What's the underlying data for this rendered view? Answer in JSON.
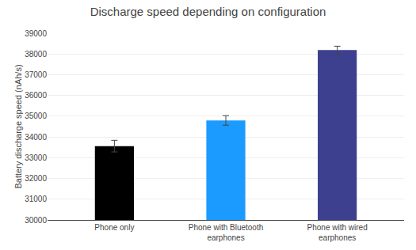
{
  "chart_data": {
    "type": "bar",
    "title": "Discharge speed depending on configuration",
    "ylabel": "Battery discharge speed (nAh/s)",
    "categories": [
      "Phone only",
      "Phone with Bluetooth\nearphones",
      "Phone with wired\nearphones"
    ],
    "values": [
      33559,
      34797,
      38185
    ],
    "errors": [
      280,
      230,
      190
    ],
    "colors": [
      "#000000",
      "#1B9BFF",
      "#3D3F8F"
    ],
    "ylim": [
      30000,
      39000
    ],
    "yticks": [
      30000,
      31000,
      32000,
      33000,
      34000,
      35000,
      36000,
      37000,
      38000,
      39000
    ],
    "grid": true
  }
}
